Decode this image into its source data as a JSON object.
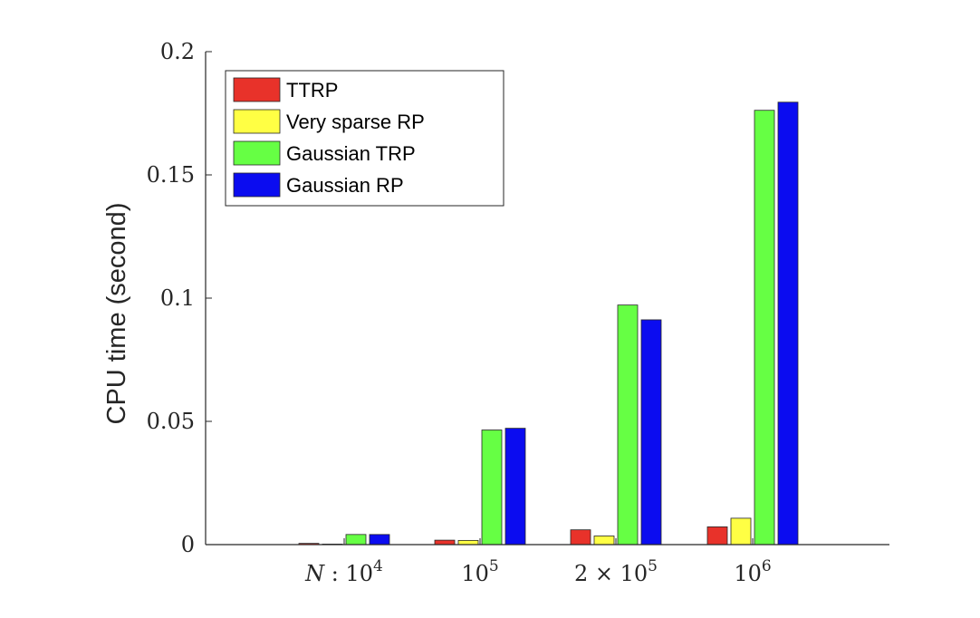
{
  "chart_data": {
    "type": "bar",
    "categories": [
      "N : 10^4",
      "10^5",
      "2 × 10^5",
      "10^6"
    ],
    "category_labels": [
      {
        "base": "N : 10",
        "exp": "4"
      },
      {
        "base": "10",
        "exp": "5"
      },
      {
        "base": "2 × 10",
        "exp": "5"
      },
      {
        "base": "10",
        "exp": "6"
      }
    ],
    "series": [
      {
        "name": "TTRP",
        "color": "#e8322a",
        "values": [
          0.0005,
          0.0018,
          0.006,
          0.0072
        ]
      },
      {
        "name": "Very sparse RP",
        "color": "#ffff44",
        "values": [
          0.0002,
          0.0017,
          0.0035,
          0.0107
        ]
      },
      {
        "name": "Gaussian TRP",
        "color": "#66ff44",
        "values": [
          0.0041,
          0.0465,
          0.0972,
          0.1762
        ]
      },
      {
        "name": "Gaussian RP",
        "color": "#0b0cf0",
        "values": [
          0.0041,
          0.0472,
          0.0912,
          0.1795
        ]
      }
    ],
    "ylabel": "CPU time (second)",
    "xlabel": "",
    "ylim": [
      0,
      0.2
    ],
    "yticks": [
      "0",
      "0.05",
      "0.1",
      "0.15",
      "0.2"
    ],
    "ytick_values": [
      0,
      0.05,
      0.1,
      0.15,
      0.2
    ],
    "grid": false,
    "legend_position": "top-left"
  }
}
